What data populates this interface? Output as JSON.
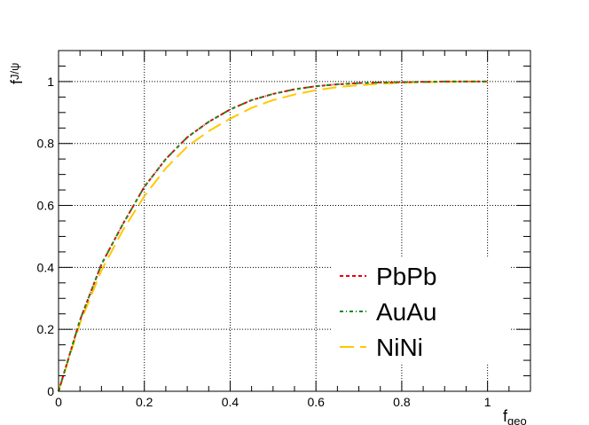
{
  "chart_data": {
    "type": "line",
    "xlabel": {
      "main": "f",
      "sub": "geo"
    },
    "ylabel": {
      "main": "f",
      "sub": "J/ψ"
    },
    "xlim": [
      0,
      1.1
    ],
    "ylim": [
      0,
      1.1
    ],
    "xticks": [
      0,
      0.2,
      0.4,
      0.6,
      0.8,
      1
    ],
    "yticks": [
      0,
      0.2,
      0.4,
      0.6,
      0.8,
      1
    ],
    "xtick_labels": [
      "0",
      "0.2",
      "0.4",
      "0.6",
      "0.8",
      "1"
    ],
    "ytick_labels": [
      "0",
      "0.2",
      "0.4",
      "0.6",
      "0.8",
      "1"
    ],
    "grid": true,
    "legend_position": "bottom-right",
    "series": [
      {
        "name": "PbPb",
        "color": "#e8000b",
        "style": "dotted",
        "x": [
          0,
          0.05,
          0.1,
          0.15,
          0.2,
          0.25,
          0.3,
          0.35,
          0.4,
          0.45,
          0.5,
          0.55,
          0.6,
          0.65,
          0.7,
          0.75,
          0.8,
          0.85,
          0.9,
          0.95,
          1.0
        ],
        "y": [
          0,
          0.23,
          0.41,
          0.54,
          0.66,
          0.75,
          0.82,
          0.87,
          0.91,
          0.94,
          0.96,
          0.975,
          0.985,
          0.991,
          0.995,
          0.997,
          0.998,
          0.999,
          1.0,
          1.0,
          1.0
        ]
      },
      {
        "name": "AuAu",
        "color": "#1f8a1f",
        "style": "dashdot",
        "x": [
          0,
          0.05,
          0.1,
          0.15,
          0.2,
          0.25,
          0.3,
          0.35,
          0.4,
          0.45,
          0.5,
          0.55,
          0.6,
          0.65,
          0.7,
          0.75,
          0.8,
          0.85,
          0.9,
          0.95,
          1.0
        ],
        "y": [
          0,
          0.23,
          0.41,
          0.54,
          0.66,
          0.75,
          0.82,
          0.87,
          0.91,
          0.94,
          0.96,
          0.975,
          0.985,
          0.991,
          0.995,
          0.997,
          0.998,
          0.999,
          1.0,
          1.0,
          1.0
        ]
      },
      {
        "name": "NiNi",
        "color": "#ffc800",
        "style": "dashed",
        "x": [
          0,
          0.05,
          0.1,
          0.15,
          0.2,
          0.25,
          0.3,
          0.35,
          0.4,
          0.45,
          0.5,
          0.55,
          0.6,
          0.65,
          0.7,
          0.75,
          0.8,
          0.85,
          0.9,
          0.95,
          1.0
        ],
        "y": [
          0,
          0.22,
          0.39,
          0.52,
          0.63,
          0.72,
          0.79,
          0.84,
          0.88,
          0.915,
          0.94,
          0.958,
          0.972,
          0.982,
          0.988,
          0.993,
          0.996,
          0.998,
          0.999,
          1.0,
          1.0
        ]
      }
    ]
  }
}
